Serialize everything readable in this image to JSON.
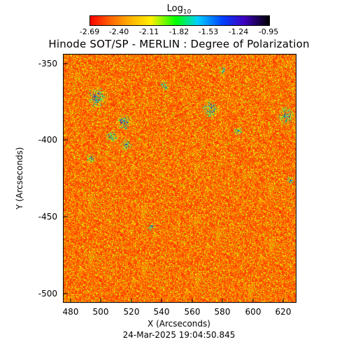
{
  "title": "Hinode SOT/SP - MERLIN : Degree of Polarization",
  "colorbar": {
    "label": "Log",
    "label_sub": "10",
    "ticks": [
      "-2.69",
      "-2.40",
      "-2.11",
      "-1.82",
      "-1.53",
      "-1.24",
      "-0.95"
    ],
    "colors": [
      "#ff0000",
      "#ff6a00",
      "#ffb000",
      "#fff000",
      "#00ff00",
      "#00d0ff",
      "#0040ff",
      "#4000c0",
      "#000000"
    ]
  },
  "axes": {
    "xlabel": "X (Arcseconds)",
    "ylabel": "Y (Arcseconds)",
    "xticks": [
      "480",
      "500",
      "520",
      "540",
      "560",
      "580",
      "600",
      "620"
    ],
    "yticks": [
      "-350",
      "-400",
      "-450",
      "-500"
    ],
    "xlim": [
      474,
      627
    ],
    "ylim": [
      -507,
      -338
    ]
  },
  "timestamp": "24-Mar-2025 19:04:50.845"
}
